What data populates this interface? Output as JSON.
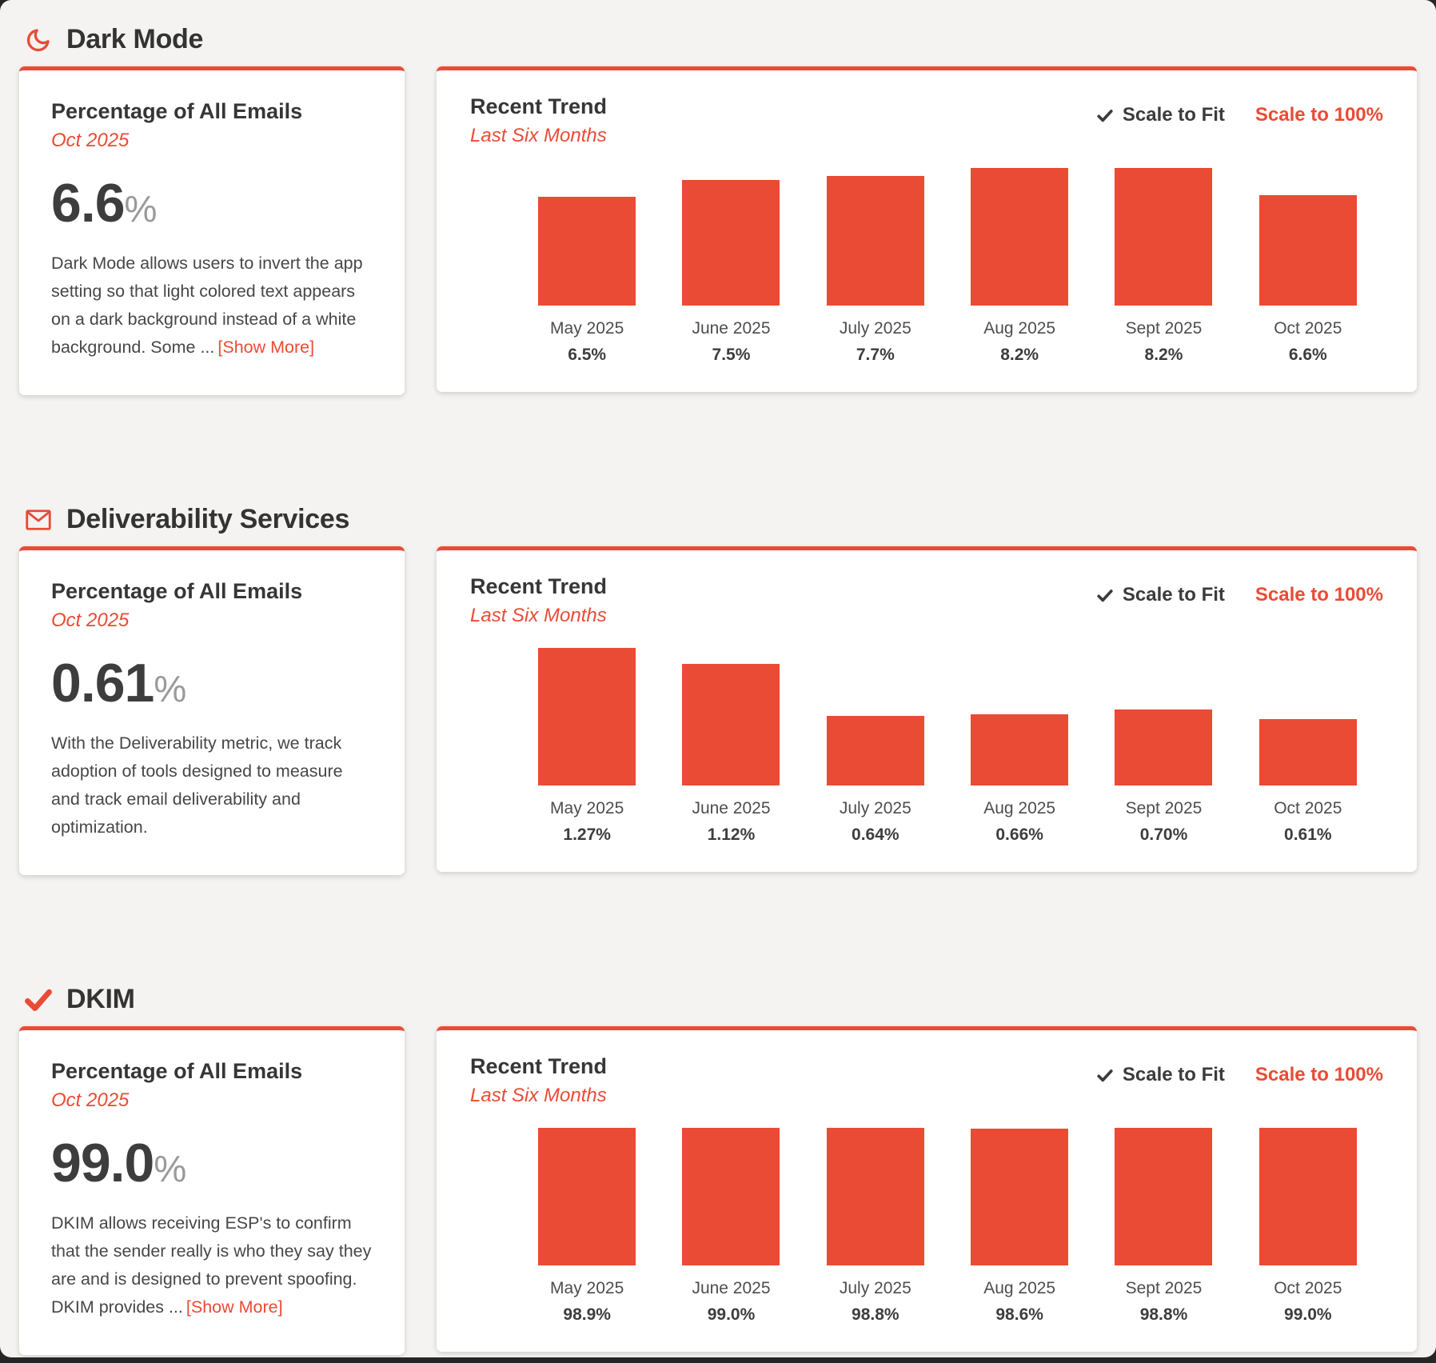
{
  "theme": {
    "accent": "#ea4b35",
    "page_background": "#f4f3f1",
    "card_background": "#ffffff",
    "bar_color": "#ea4b35"
  },
  "controls": {
    "scale_to_fit": "Scale to Fit",
    "scale_to_100": "Scale to 100%",
    "scale_to_fit_selected": true
  },
  "sections": [
    {
      "title": "Dark Mode",
      "icon": "moon-icon",
      "stat": {
        "heading": "Percentage of All Emails",
        "period": "Oct 2025",
        "value": "6.6",
        "unit": "%",
        "description": "Dark Mode allows users to invert the app setting so that light colored text appears on a dark background instead of a white background. Some ...",
        "show_more": "[Show More]"
      },
      "trend": {
        "heading": "Recent Trend",
        "subheading": "Last Six Months",
        "bars": [
          {
            "month": "May 2025",
            "label": "6.5%",
            "value": 6.5
          },
          {
            "month": "June 2025",
            "label": "7.5%",
            "value": 7.5
          },
          {
            "month": "July 2025",
            "label": "7.7%",
            "value": 7.7
          },
          {
            "month": "Aug 2025",
            "label": "8.2%",
            "value": 8.2
          },
          {
            "month": "Sept 2025",
            "label": "8.2%",
            "value": 8.2
          },
          {
            "month": "Oct 2025",
            "label": "6.6%",
            "value": 6.6
          }
        ]
      }
    },
    {
      "title": "Deliverability Services",
      "icon": "envelope-icon",
      "stat": {
        "heading": "Percentage of All Emails",
        "period": "Oct 2025",
        "value": "0.61",
        "unit": "%",
        "description": "With the Deliverability metric, we track adoption of tools designed to measure and track email deliverability and optimization.",
        "show_more": ""
      },
      "trend": {
        "heading": "Recent Trend",
        "subheading": "Last Six Months",
        "bars": [
          {
            "month": "May 2025",
            "label": "1.27%",
            "value": 1.27
          },
          {
            "month": "June 2025",
            "label": "1.12%",
            "value": 1.12
          },
          {
            "month": "July 2025",
            "label": "0.64%",
            "value": 0.64
          },
          {
            "month": "Aug 2025",
            "label": "0.66%",
            "value": 0.66
          },
          {
            "month": "Sept 2025",
            "label": "0.70%",
            "value": 0.7
          },
          {
            "month": "Oct 2025",
            "label": "0.61%",
            "value": 0.61
          }
        ]
      }
    },
    {
      "title": "DKIM",
      "icon": "check-icon",
      "stat": {
        "heading": "Percentage of All Emails",
        "period": "Oct 2025",
        "value": "99.0",
        "unit": "%",
        "description": "DKIM allows receiving ESP's to confirm that the sender really is who they say they are and is designed to prevent spoofing. DKIM provides ...",
        "show_more": "[Show More]"
      },
      "trend": {
        "heading": "Recent Trend",
        "subheading": "Last Six Months",
        "bars": [
          {
            "month": "May 2025",
            "label": "98.9%",
            "value": 98.9
          },
          {
            "month": "June 2025",
            "label": "99.0%",
            "value": 99.0
          },
          {
            "month": "July 2025",
            "label": "98.8%",
            "value": 98.8
          },
          {
            "month": "Aug 2025",
            "label": "98.6%",
            "value": 98.6
          },
          {
            "month": "Sept 2025",
            "label": "98.8%",
            "value": 98.8
          },
          {
            "month": "Oct 2025",
            "label": "99.0%",
            "value": 99.0
          }
        ]
      }
    }
  ],
  "chart_data": [
    {
      "type": "bar",
      "title": "Dark Mode — Recent Trend (Last Six Months)",
      "categories": [
        "May 2025",
        "June 2025",
        "July 2025",
        "Aug 2025",
        "Sept 2025",
        "Oct 2025"
      ],
      "values": [
        6.5,
        7.5,
        7.7,
        8.2,
        8.2,
        6.6
      ],
      "unit": "%",
      "xlabel": "",
      "ylabel": "Percentage of All Emails",
      "scale_mode": "Scale to Fit",
      "grid": false,
      "legend": false
    },
    {
      "type": "bar",
      "title": "Deliverability Services — Recent Trend (Last Six Months)",
      "categories": [
        "May 2025",
        "June 2025",
        "July 2025",
        "Aug 2025",
        "Sept 2025",
        "Oct 2025"
      ],
      "values": [
        1.27,
        1.12,
        0.64,
        0.66,
        0.7,
        0.61
      ],
      "unit": "%",
      "xlabel": "",
      "ylabel": "Percentage of All Emails",
      "scale_mode": "Scale to Fit",
      "grid": false,
      "legend": false
    },
    {
      "type": "bar",
      "title": "DKIM — Recent Trend (Last Six Months)",
      "categories": [
        "May 2025",
        "June 2025",
        "July 2025",
        "Aug 2025",
        "Sept 2025",
        "Oct 2025"
      ],
      "values": [
        98.9,
        99.0,
        98.8,
        98.6,
        98.8,
        99.0
      ],
      "unit": "%",
      "xlabel": "",
      "ylabel": "Percentage of All Emails",
      "scale_mode": "Scale to Fit",
      "grid": false,
      "legend": false
    }
  ]
}
